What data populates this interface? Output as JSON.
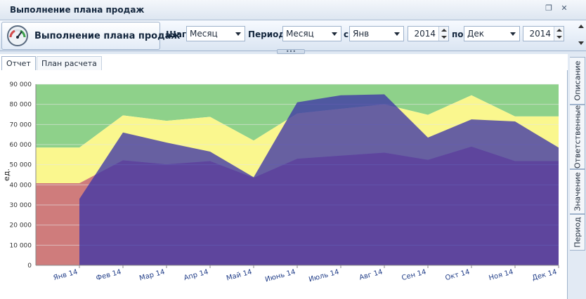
{
  "window": {
    "title": "Выполнение плана продаж"
  },
  "toolbar": {
    "report_name": "Выполнение плана продаж",
    "step_label": "Шаг:",
    "step_value": "Месяц",
    "period_label": "Период:",
    "period_value": "Месяц",
    "from_label": "с",
    "from_month": "Янв",
    "from_year": "2014",
    "to_label": "по",
    "to_month": "Дек",
    "to_year": "2014"
  },
  "tabs": [
    {
      "label": "Отчет",
      "active": true
    },
    {
      "label": "План расчета",
      "active": false
    }
  ],
  "side_tabs": [
    {
      "label": "Описание"
    },
    {
      "label": "Ответственные"
    },
    {
      "label": "Значение"
    },
    {
      "label": "Период"
    }
  ],
  "chart_data": {
    "type": "area",
    "ylabel": "ед.",
    "ylim": [
      0,
      90000
    ],
    "yticks": [
      0,
      10000,
      20000,
      30000,
      40000,
      50000,
      60000,
      70000,
      80000,
      90000
    ],
    "ytick_labels": [
      "0",
      "10 000",
      "20 000",
      "30 000",
      "40 000",
      "50 000",
      "60 000",
      "70 000",
      "80 000",
      "90 000"
    ],
    "categories": [
      "Янв 14",
      "Фев 14",
      "Мар 14",
      "Апр 14",
      "Май 14",
      "Июнь 14",
      "Июль 14",
      "Авг 14",
      "Сен 14",
      "Окт 14",
      "Ноя 14",
      "Дек 14"
    ],
    "bands": {
      "green_top": 90000,
      "yellow_top": [
        58500,
        58500,
        74500,
        71800,
        73800,
        62000,
        75500,
        77800,
        80000,
        74800,
        84500,
        74000,
        74000,
        74000
      ],
      "red_top": [
        40800,
        40800,
        52200,
        50200,
        51800,
        43500,
        53000,
        54500,
        56000,
        52400,
        59000,
        51800,
        51800,
        51800
      ]
    },
    "series": [
      {
        "values": [
          33000,
          66000,
          61000,
          56500,
          43800,
          81000,
          84500,
          85000,
          63500,
          72500,
          71500,
          58500
        ]
      }
    ],
    "colors": {
      "green": "#8ed18a",
      "yellow": "#faf78e",
      "red": "#cf7c7c",
      "series": "#3e36a6",
      "grid": "#e6e6e6"
    }
  }
}
